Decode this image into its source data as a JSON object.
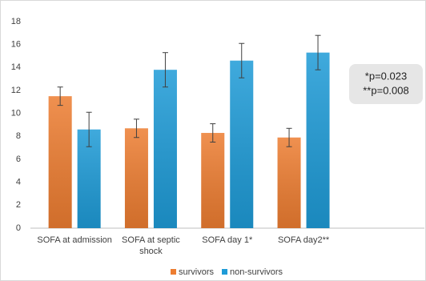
{
  "chart_data": {
    "type": "bar",
    "categories": [
      "SOFA at admission",
      "SOFA at septic shock",
      "SOFA day 1*",
      "SOFA day2**"
    ],
    "series": [
      {
        "name": "survivors",
        "color": "#ed7d31",
        "values": [
          11.5,
          8.7,
          8.3,
          7.9
        ],
        "errors": [
          0.8,
          0.8,
          0.8,
          0.8
        ]
      },
      {
        "name": "non-survivors",
        "color": "#1e9bd7",
        "values": [
          8.6,
          13.8,
          14.6,
          15.3
        ],
        "errors": [
          1.5,
          1.5,
          1.5,
          1.5
        ]
      }
    ],
    "ylim": [
      0,
      18
    ],
    "yticks": [
      0,
      2,
      4,
      6,
      8,
      10,
      12,
      14,
      16,
      18
    ],
    "grid": false,
    "annotation": [
      "*p=0.023",
      "**p=0.008"
    ],
    "legend": "bottom"
  }
}
